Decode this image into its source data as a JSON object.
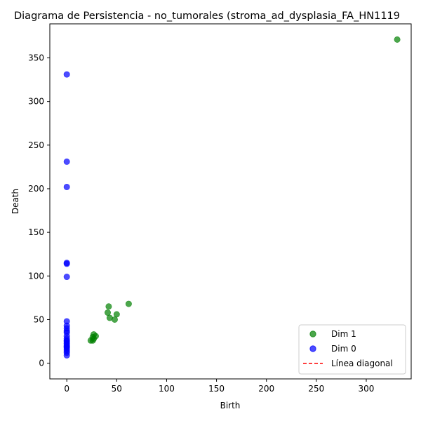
{
  "chart_data": {
    "type": "scatter",
    "title": "Diagrama de Persistencia - no_tumorales (stroma_ad_dysplasia_FA_HN1119",
    "xlabel": "Birth",
    "ylabel": "Death",
    "xlim": [
      -17,
      345
    ],
    "ylim": [
      -18,
      389
    ],
    "xticks": [
      0,
      50,
      100,
      150,
      200,
      250,
      300
    ],
    "yticks": [
      0,
      50,
      100,
      150,
      200,
      250,
      300,
      350
    ],
    "xtick_labels": [
      "0",
      "50",
      "100",
      "150",
      "200",
      "250",
      "300"
    ],
    "ytick_labels": [
      "0",
      "50",
      "100",
      "150",
      "200",
      "250",
      "300",
      "350"
    ],
    "legend_position": "lower-right",
    "series": [
      {
        "name": "Dim 1",
        "color": "#008000",
        "points": [
          [
            331,
            371
          ],
          [
            62,
            68
          ],
          [
            42,
            65
          ],
          [
            41,
            58
          ],
          [
            50,
            56
          ],
          [
            43,
            52
          ],
          [
            48,
            50
          ],
          [
            27,
            33
          ],
          [
            29,
            31
          ],
          [
            26,
            30
          ],
          [
            27,
            28
          ],
          [
            24,
            26
          ],
          [
            26,
            26
          ]
        ]
      },
      {
        "name": "Dim 0",
        "color": "#0000ff",
        "points": [
          [
            0,
            331
          ],
          [
            0,
            231
          ],
          [
            0,
            202
          ],
          [
            0,
            115
          ],
          [
            0,
            114
          ],
          [
            0,
            99
          ],
          [
            0,
            48
          ],
          [
            0,
            43
          ],
          [
            0,
            40
          ],
          [
            0,
            37
          ],
          [
            0,
            35
          ],
          [
            0,
            31
          ],
          [
            0,
            28
          ],
          [
            0,
            26
          ],
          [
            0,
            25
          ],
          [
            0,
            23
          ],
          [
            0,
            22
          ],
          [
            0,
            20
          ],
          [
            0,
            19
          ],
          [
            0,
            18
          ],
          [
            0,
            16
          ],
          [
            0,
            14
          ],
          [
            0,
            12
          ],
          [
            0,
            9
          ]
        ]
      },
      {
        "name": "Línea diagonal",
        "color": "#ff0000",
        "style": "dashed",
        "points": []
      }
    ]
  }
}
